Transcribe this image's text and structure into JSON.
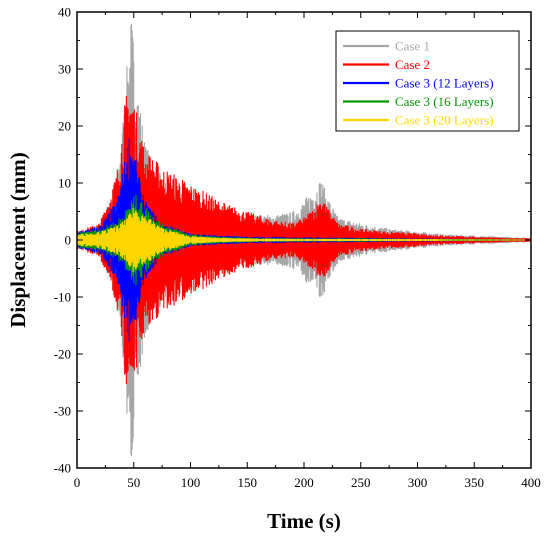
{
  "chart_data": {
    "type": "area",
    "title": "",
    "xlabel": "Time (s)",
    "ylabel": "Displacement (mm)",
    "xlim": [
      0,
      400
    ],
    "ylim": [
      -40,
      40
    ],
    "xticks": [
      0,
      50,
      100,
      150,
      200,
      250,
      300,
      350,
      400
    ],
    "yticks": [
      -40,
      -30,
      -20,
      -10,
      0,
      10,
      20,
      30,
      40
    ],
    "grid": false,
    "legend_position": "top-right",
    "series": [
      {
        "name": "Case 1",
        "color": "#a6a6a6",
        "envelope_x": [
          0,
          20,
          35,
          42,
          46,
          48,
          52,
          60,
          75,
          100,
          125,
          150,
          175,
          190,
          200,
          210,
          215,
          220,
          230,
          250,
          275,
          300,
          325,
          350,
          375,
          400
        ],
        "envelope_amplitude": [
          1.5,
          3,
          10,
          25,
          36,
          40,
          30,
          17,
          11,
          7,
          5,
          4.5,
          4.5,
          5,
          7,
          9.5,
          11,
          8,
          4,
          3,
          2,
          1.5,
          1,
          0.8,
          0.6,
          0.4
        ]
      },
      {
        "name": "Case 2",
        "color": "#ff0000",
        "envelope_x": [
          0,
          20,
          35,
          42,
          46,
          48,
          52,
          60,
          75,
          100,
          125,
          150,
          175,
          190,
          200,
          210,
          215,
          220,
          230,
          250,
          275,
          300,
          325,
          350,
          375,
          400
        ],
        "envelope_amplitude": [
          1.5,
          3,
          12,
          24,
          29,
          27,
          23,
          16,
          13,
          10,
          7,
          5,
          3.5,
          3,
          4,
          6,
          8,
          6,
          3,
          2,
          1.5,
          1.2,
          0.8,
          0.6,
          0.4,
          0.3
        ]
      },
      {
        "name": "Case 3 (12 Layers)",
        "color": "#0000ff",
        "envelope_x": [
          0,
          20,
          35,
          42,
          46,
          48,
          52,
          60,
          75,
          100,
          125,
          150,
          200,
          250,
          300,
          350,
          400
        ],
        "envelope_amplitude": [
          1.5,
          2.5,
          7,
          14,
          19,
          18,
          14,
          7,
          3,
          1.2,
          0.8,
          0.6,
          0.5,
          0.4,
          0.3,
          0.2,
          0.1
        ]
      },
      {
        "name": "Case 3 (16 Layers)",
        "color": "#009900",
        "envelope_x": [
          0,
          20,
          35,
          42,
          46,
          48,
          52,
          60,
          75,
          100,
          125,
          150,
          200,
          250,
          300,
          350,
          400
        ],
        "envelope_amplitude": [
          1.2,
          2,
          3.5,
          5,
          6.5,
          7.5,
          8,
          6,
          3,
          1,
          0.6,
          0.4,
          0.3,
          0.3,
          0.2,
          0.2,
          0.1
        ]
      },
      {
        "name": "Case 3 (20 Layers)",
        "color": "#ffd700",
        "envelope_x": [
          0,
          20,
          35,
          42,
          46,
          48,
          52,
          60,
          75,
          100,
          125,
          150,
          200,
          250,
          300,
          350,
          400
        ],
        "envelope_amplitude": [
          1,
          1.5,
          2.5,
          3.5,
          4.5,
          5.5,
          6,
          4.5,
          2.2,
          0.7,
          0.4,
          0.3,
          0.2,
          0.2,
          0.2,
          0.1,
          0.1
        ]
      }
    ]
  }
}
